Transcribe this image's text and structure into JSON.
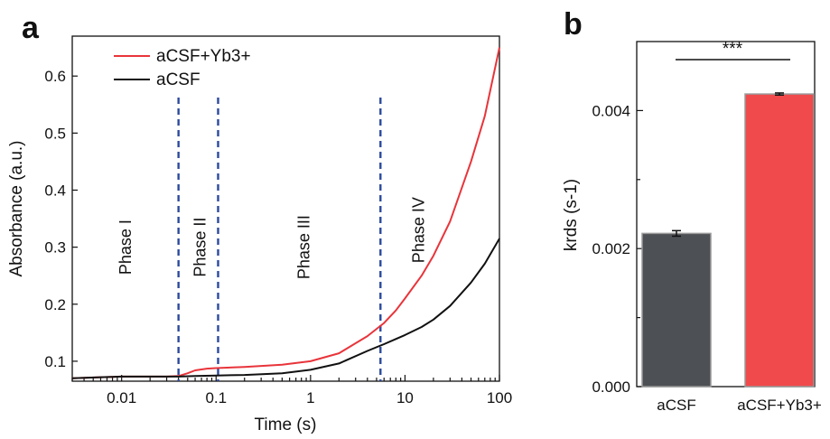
{
  "chart_data": [
    {
      "panel_label": "a",
      "type": "line",
      "xlabel": "Time (s)",
      "ylabel": "Absorbance (a.u.)",
      "x_scale": "log",
      "xlim": [
        0.003,
        100
      ],
      "ylim": [
        0.065,
        0.67
      ],
      "xticks": [
        0.01,
        0.1,
        1,
        10,
        100
      ],
      "xtick_labels": [
        "0.01",
        "0.1",
        "1",
        "10",
        "100"
      ],
      "yticks": [
        0.1,
        0.2,
        0.3,
        0.4,
        0.5,
        0.6
      ],
      "ytick_labels": [
        "0.1",
        "0.2",
        "0.3",
        "0.4",
        "0.5",
        "0.6"
      ],
      "legend_position": "top-left",
      "series": [
        {
          "name": "aCSF+Yb3+",
          "color": "#e8343a",
          "x": [
            0.003,
            0.006,
            0.01,
            0.02,
            0.03,
            0.04,
            0.05,
            0.06,
            0.08,
            0.1,
            0.2,
            0.5,
            1,
            2,
            4,
            6,
            8,
            10,
            15,
            20,
            30,
            50,
            70,
            100
          ],
          "y": [
            0.07,
            0.072,
            0.073,
            0.073,
            0.073,
            0.074,
            0.079,
            0.084,
            0.087,
            0.088,
            0.09,
            0.094,
            0.1,
            0.114,
            0.144,
            0.167,
            0.189,
            0.21,
            0.25,
            0.285,
            0.345,
            0.45,
            0.53,
            0.65
          ]
        },
        {
          "name": "aCSF",
          "color": "#111111",
          "x": [
            0.003,
            0.006,
            0.01,
            0.02,
            0.03,
            0.04,
            0.06,
            0.1,
            0.2,
            0.5,
            1,
            2,
            4,
            6,
            8,
            10,
            15,
            20,
            30,
            50,
            70,
            100
          ],
          "y": [
            0.07,
            0.072,
            0.073,
            0.073,
            0.073,
            0.073,
            0.074,
            0.075,
            0.076,
            0.079,
            0.085,
            0.096,
            0.118,
            0.13,
            0.139,
            0.146,
            0.16,
            0.173,
            0.197,
            0.238,
            0.271,
            0.315
          ]
        }
      ],
      "phase_boundaries": [
        0.04,
        0.105,
        5.5
      ],
      "phase_line_color": "#2c4a9e",
      "phase_labels": [
        {
          "text": "Phase I",
          "x": 0.011,
          "y": 0.3
        },
        {
          "text": "Phase II",
          "x": 0.068,
          "y": 0.3
        },
        {
          "text": "Phase III",
          "x": 0.85,
          "y": 0.3
        },
        {
          "text": "Phase IV",
          "x": 14,
          "y": 0.33
        }
      ]
    },
    {
      "panel_label": "b",
      "type": "bar",
      "ylabel": "krds (s-1)",
      "ylim": [
        0,
        0.005
      ],
      "yticks": [
        0,
        0.002,
        0.004
      ],
      "ytick_labels": [
        "0.000",
        "0.002",
        "0.004"
      ],
      "categories": [
        "aCSF",
        "aCSF+Yb3+"
      ],
      "values": [
        0.00222,
        0.00424
      ],
      "errors": [
        4e-05,
        1.5e-05
      ],
      "colors": [
        "#4d5054",
        "#f04a4c"
      ],
      "significance": "***"
    }
  ]
}
